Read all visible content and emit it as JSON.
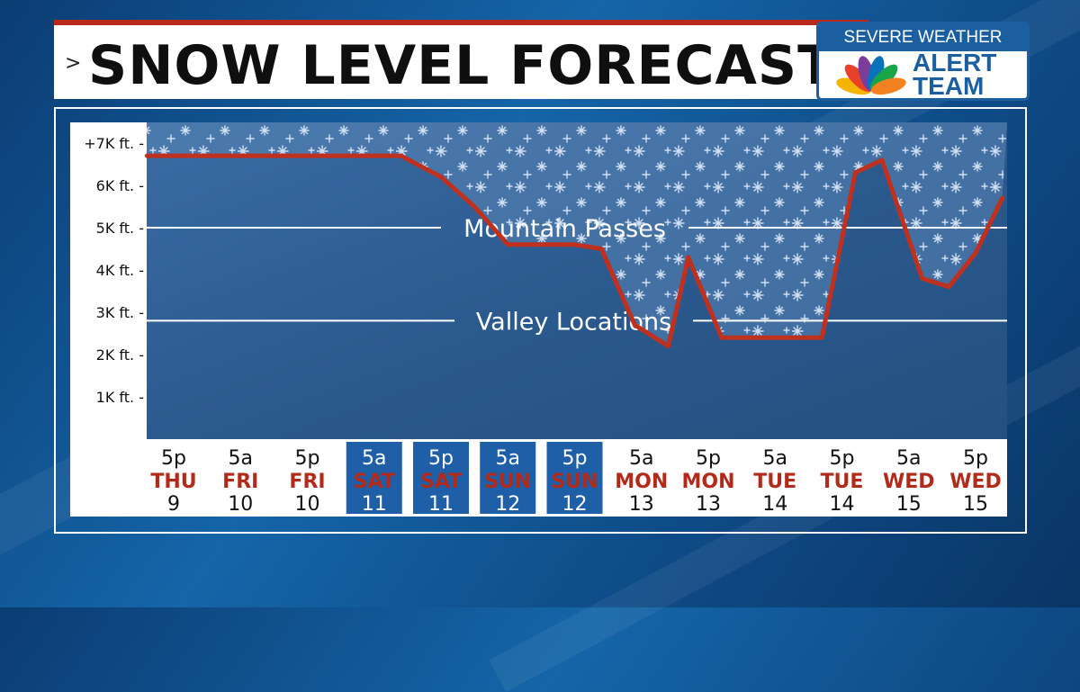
{
  "header": {
    "chevron": ">",
    "title": "SNOW LEVEL FORECAST"
  },
  "logo": {
    "line1": "SEVERE WEATHER",
    "line2": "ALERT",
    "line3": "TEAM",
    "peacock_colors": [
      "#f5b400",
      "#e8412a",
      "#7b3d98",
      "#0a72bc",
      "#1aa44a",
      "#f58220"
    ]
  },
  "colors": {
    "line": "#c0301f",
    "weekday_text": "#b22a1a",
    "highlight_bg": "#1f5fa8",
    "plot_bg": "#2e5f95",
    "snow_area": "#5a85b6"
  },
  "chart_data": {
    "type": "line",
    "title": "SNOW LEVEL FORECAST",
    "xlabel": "",
    "ylabel": "",
    "y_tick_labels": [
      "1K ft. -",
      "2K ft. -",
      "3K ft. -",
      "4K ft. -",
      "5K ft. -",
      "6K ft. -",
      "+7K ft. -"
    ],
    "y_ticks": [
      1000,
      2000,
      3000,
      4000,
      5000,
      6000,
      7000
    ],
    "ylim": [
      0,
      7300
    ],
    "x_axis": [
      {
        "time": "5p",
        "day": "THU",
        "date": "9",
        "highlight": false
      },
      {
        "time": "5a",
        "day": "FRI",
        "date": "10",
        "highlight": false
      },
      {
        "time": "5p",
        "day": "FRI",
        "date": "10",
        "highlight": false
      },
      {
        "time": "5a",
        "day": "SAT",
        "date": "11",
        "highlight": true
      },
      {
        "time": "5p",
        "day": "SAT",
        "date": "11",
        "highlight": true
      },
      {
        "time": "5a",
        "day": "SUN",
        "date": "12",
        "highlight": true
      },
      {
        "time": "5p",
        "day": "SUN",
        "date": "12",
        "highlight": true
      },
      {
        "time": "5a",
        "day": "MON",
        "date": "13",
        "highlight": false
      },
      {
        "time": "5p",
        "day": "MON",
        "date": "13",
        "highlight": false
      },
      {
        "time": "5a",
        "day": "TUE",
        "date": "14",
        "highlight": false
      },
      {
        "time": "5p",
        "day": "TUE",
        "date": "14",
        "highlight": false
      },
      {
        "time": "5a",
        "day": "WED",
        "date": "15",
        "highlight": false
      },
      {
        "time": "5p",
        "day": "WED",
        "date": "15",
        "highlight": false
      }
    ],
    "series": [
      {
        "x": [
          -0.4,
          0,
          1,
          2,
          3.4,
          4,
          4.5,
          5,
          5.5,
          6,
          6.4,
          6.9,
          7.4,
          7.7,
          8.2,
          9.4,
          9.7,
          10.2,
          10.6,
          11.2,
          11.6,
          12,
          12.4
        ],
        "values": [
          6700,
          6700,
          6700,
          6700,
          6700,
          6200,
          5500,
          4600,
          4600,
          4600,
          4500,
          2700,
          2200,
          4300,
          2400,
          2400,
          2400,
          6300,
          6600,
          3800,
          3600,
          4400,
          5700
        ]
      }
    ],
    "reference_lines": [
      {
        "label": "Mountain Passes",
        "value": 5000
      },
      {
        "label": "Valley Locations",
        "value": 2800
      }
    ],
    "grid": false,
    "legend": "none"
  }
}
